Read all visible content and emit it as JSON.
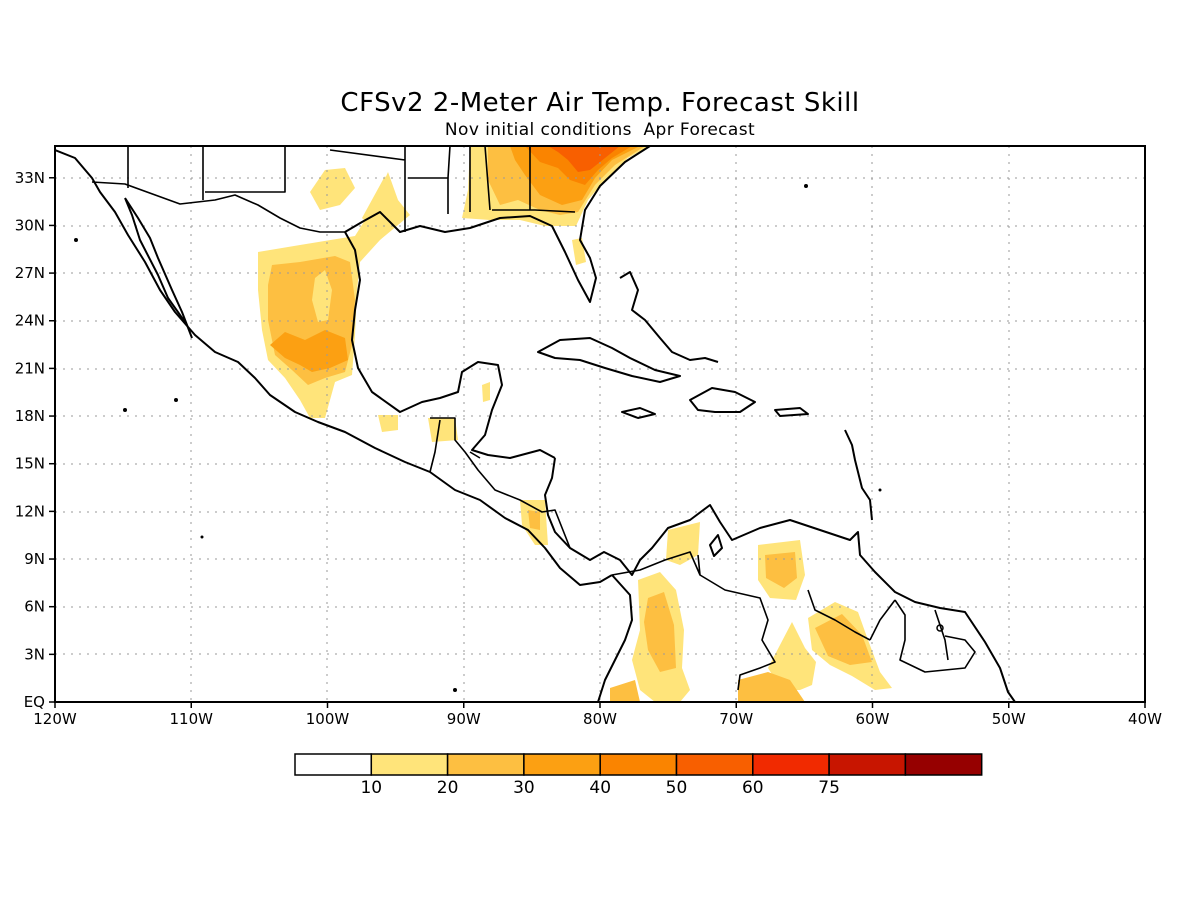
{
  "title": "CFSv2 2-Meter Air Temp. Forecast Skill",
  "subtitle": "Nov initial conditions  Apr Forecast",
  "map": {
    "lon_range": [
      -120,
      -40
    ],
    "lat_range": [
      0,
      35
    ],
    "lon_ticks": [
      {
        "lon": -120,
        "label": "120W"
      },
      {
        "lon": -110,
        "label": "110W"
      },
      {
        "lon": -100,
        "label": "100W"
      },
      {
        "lon": -90,
        "label": "90W"
      },
      {
        "lon": -80,
        "label": "80W"
      },
      {
        "lon": -70,
        "label": "70W"
      },
      {
        "lon": -60,
        "label": "60W"
      },
      {
        "lon": -50,
        "label": "50W"
      },
      {
        "lon": -40,
        "label": "40W"
      }
    ],
    "lat_ticks": [
      {
        "lat": 0,
        "label": "EQ"
      },
      {
        "lat": 3,
        "label": "3N"
      },
      {
        "lat": 6,
        "label": "6N"
      },
      {
        "lat": 9,
        "label": "9N"
      },
      {
        "lat": 12,
        "label": "12N"
      },
      {
        "lat": 15,
        "label": "15N"
      },
      {
        "lat": 18,
        "label": "18N"
      },
      {
        "lat": 21,
        "label": "21N"
      },
      {
        "lat": 24,
        "label": "24N"
      },
      {
        "lat": 27,
        "label": "27N"
      },
      {
        "lat": 30,
        "label": "30N"
      },
      {
        "lat": 33,
        "label": "33N"
      }
    ],
    "grid": true
  },
  "legend": {
    "levels": [
      "10",
      "20",
      "30",
      "40",
      "50",
      "60",
      "75"
    ],
    "colors": [
      "#ffffff",
      "#ffe47a",
      "#fdbf41",
      "#fca012",
      "#fa8400",
      "#f85f00",
      "#f12a00",
      "#c81500",
      "#960000"
    ]
  },
  "skill_regions": [
    {
      "name": "mexico-plateau",
      "level": 2
    },
    {
      "name": "southeast-us",
      "level": 4
    },
    {
      "name": "colombia",
      "level": 2
    },
    {
      "name": "venezuela",
      "level": 2
    },
    {
      "name": "guyana",
      "level": 2
    }
  ]
}
